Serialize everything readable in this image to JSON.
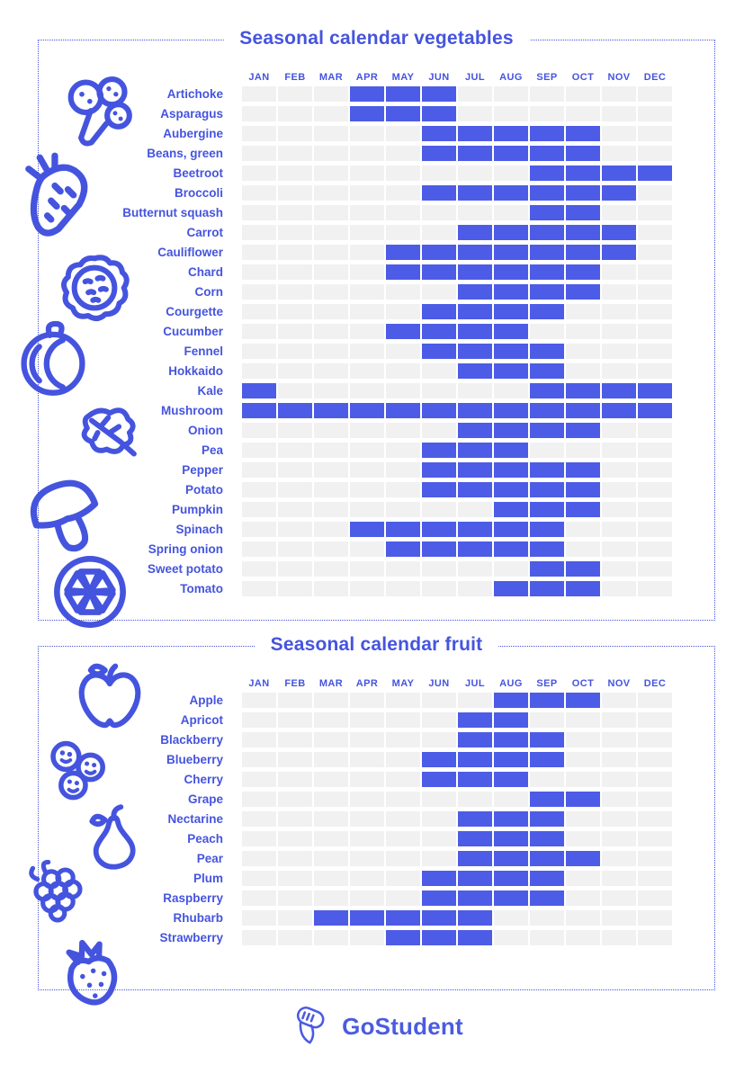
{
  "page": {
    "kind": "seasonal-calendar-infographic"
  },
  "colors": {
    "accent": "#4554DE",
    "cell_filled": "#4D5CE6",
    "cell_empty": "#F1F1F1",
    "background": "#FFFFFF"
  },
  "months": [
    "JAN",
    "FEB",
    "MAR",
    "APR",
    "MAY",
    "JUN",
    "JUL",
    "AUG",
    "SEP",
    "OCT",
    "NOV",
    "DEC"
  ],
  "chart_data": [
    {
      "type": "heatmap",
      "title": "Seasonal calendar vegetables",
      "columns": [
        "JAN",
        "FEB",
        "MAR",
        "APR",
        "MAY",
        "JUN",
        "JUL",
        "AUG",
        "SEP",
        "OCT",
        "NOV",
        "DEC"
      ],
      "legend": "filled cell = in season",
      "rows": [
        {
          "label": "Artichoke",
          "months": [
            "APR",
            "MAY",
            "JUN"
          ]
        },
        {
          "label": "Asparagus",
          "months": [
            "APR",
            "MAY",
            "JUN"
          ]
        },
        {
          "label": "Aubergine",
          "months": [
            "JUN",
            "JUL",
            "AUG",
            "SEP",
            "OCT"
          ]
        },
        {
          "label": "Beans, green",
          "months": [
            "JUN",
            "JUL",
            "AUG",
            "SEP",
            "OCT"
          ]
        },
        {
          "label": "Beetroot",
          "months": [
            "SEP",
            "OCT",
            "NOV",
            "DEC"
          ]
        },
        {
          "label": "Broccoli",
          "months": [
            "JUN",
            "JUL",
            "AUG",
            "SEP",
            "OCT",
            "NOV"
          ]
        },
        {
          "label": "Butternut squash",
          "months": [
            "SEP",
            "OCT"
          ]
        },
        {
          "label": "Carrot",
          "months": [
            "JUL",
            "AUG",
            "SEP",
            "OCT",
            "NOV"
          ]
        },
        {
          "label": "Cauliflower",
          "months": [
            "MAY",
            "JUN",
            "JUL",
            "AUG",
            "SEP",
            "OCT",
            "NOV"
          ]
        },
        {
          "label": "Chard",
          "months": [
            "MAY",
            "JUN",
            "JUL",
            "AUG",
            "SEP",
            "OCT"
          ]
        },
        {
          "label": "Corn",
          "months": [
            "JUL",
            "AUG",
            "SEP",
            "OCT"
          ]
        },
        {
          "label": "Courgette",
          "months": [
            "JUN",
            "JUL",
            "AUG",
            "SEP"
          ]
        },
        {
          "label": "Cucumber",
          "months": [
            "MAY",
            "JUN",
            "JUL",
            "AUG"
          ]
        },
        {
          "label": "Fennel",
          "months": [
            "JUN",
            "JUL",
            "AUG",
            "SEP"
          ]
        },
        {
          "label": "Hokkaido",
          "months": [
            "JUL",
            "AUG",
            "SEP"
          ]
        },
        {
          "label": "Kale",
          "months": [
            "JAN",
            "SEP",
            "OCT",
            "NOV",
            "DEC"
          ]
        },
        {
          "label": "Mushroom",
          "months": [
            "JAN",
            "FEB",
            "MAR",
            "APR",
            "MAY",
            "JUN",
            "JUL",
            "AUG",
            "SEP",
            "OCT",
            "NOV",
            "DEC"
          ]
        },
        {
          "label": "Onion",
          "months": [
            "JUL",
            "AUG",
            "SEP",
            "OCT"
          ]
        },
        {
          "label": "Pea",
          "months": [
            "JUN",
            "JUL",
            "AUG"
          ]
        },
        {
          "label": "Pepper",
          "months": [
            "JUN",
            "JUL",
            "AUG",
            "SEP",
            "OCT"
          ]
        },
        {
          "label": "Potato",
          "months": [
            "JUN",
            "JUL",
            "AUG",
            "SEP",
            "OCT"
          ]
        },
        {
          "label": "Pumpkin",
          "months": [
            "AUG",
            "SEP",
            "OCT"
          ]
        },
        {
          "label": "Spinach",
          "months": [
            "APR",
            "MAY",
            "JUN",
            "JUL",
            "AUG",
            "SEP"
          ]
        },
        {
          "label": "Spring onion",
          "months": [
            "MAY",
            "JUN",
            "JUL",
            "AUG",
            "SEP"
          ]
        },
        {
          "label": "Sweet potato",
          "months": [
            "SEP",
            "OCT"
          ]
        },
        {
          "label": "Tomato",
          "months": [
            "AUG",
            "SEP",
            "OCT"
          ]
        }
      ]
    },
    {
      "type": "heatmap",
      "title": "Seasonal calendar fruit",
      "columns": [
        "JAN",
        "FEB",
        "MAR",
        "APR",
        "MAY",
        "JUN",
        "JUL",
        "AUG",
        "SEP",
        "OCT",
        "NOV",
        "DEC"
      ],
      "legend": "filled cell = in season",
      "rows": [
        {
          "label": "Apple",
          "months": [
            "AUG",
            "SEP",
            "OCT"
          ]
        },
        {
          "label": "Apricot",
          "months": [
            "JUL",
            "AUG"
          ]
        },
        {
          "label": "Blackberry",
          "months": [
            "JUL",
            "AUG",
            "SEP"
          ]
        },
        {
          "label": "Blueberry",
          "months": [
            "JUN",
            "JUL",
            "AUG",
            "SEP"
          ]
        },
        {
          "label": "Cherry",
          "months": [
            "JUN",
            "JUL",
            "AUG"
          ]
        },
        {
          "label": "Grape",
          "months": [
            "SEP",
            "OCT"
          ]
        },
        {
          "label": "Nectarine",
          "months": [
            "JUL",
            "AUG",
            "SEP"
          ]
        },
        {
          "label": "Peach",
          "months": [
            "JUL",
            "AUG",
            "SEP"
          ]
        },
        {
          "label": "Pear",
          "months": [
            "JUL",
            "AUG",
            "SEP",
            "OCT"
          ]
        },
        {
          "label": "Plum",
          "months": [
            "JUN",
            "JUL",
            "AUG",
            "SEP"
          ]
        },
        {
          "label": "Raspberry",
          "months": [
            "JUN",
            "JUL",
            "AUG",
            "SEP"
          ]
        },
        {
          "label": "Rhubarb",
          "months": [
            "MAR",
            "APR",
            "MAY",
            "JUN",
            "JUL"
          ]
        },
        {
          "label": "Strawberry",
          "months": [
            "MAY",
            "JUN",
            "JUL"
          ]
        }
      ]
    }
  ],
  "icons": {
    "vegetables": [
      "broccoli-icon",
      "carrot-icon",
      "cabbage-icon",
      "pumpkin-icon",
      "kale-leaf-icon",
      "mushroom-icon",
      "citrus-slice-icon"
    ],
    "fruit": [
      "apple-icon",
      "blueberries-icon",
      "pear-icon",
      "blackberry-icon",
      "strawberry-icon"
    ],
    "footer": [
      "gostudent-scroll-icon"
    ]
  },
  "logo": {
    "text": "GoStudent"
  }
}
